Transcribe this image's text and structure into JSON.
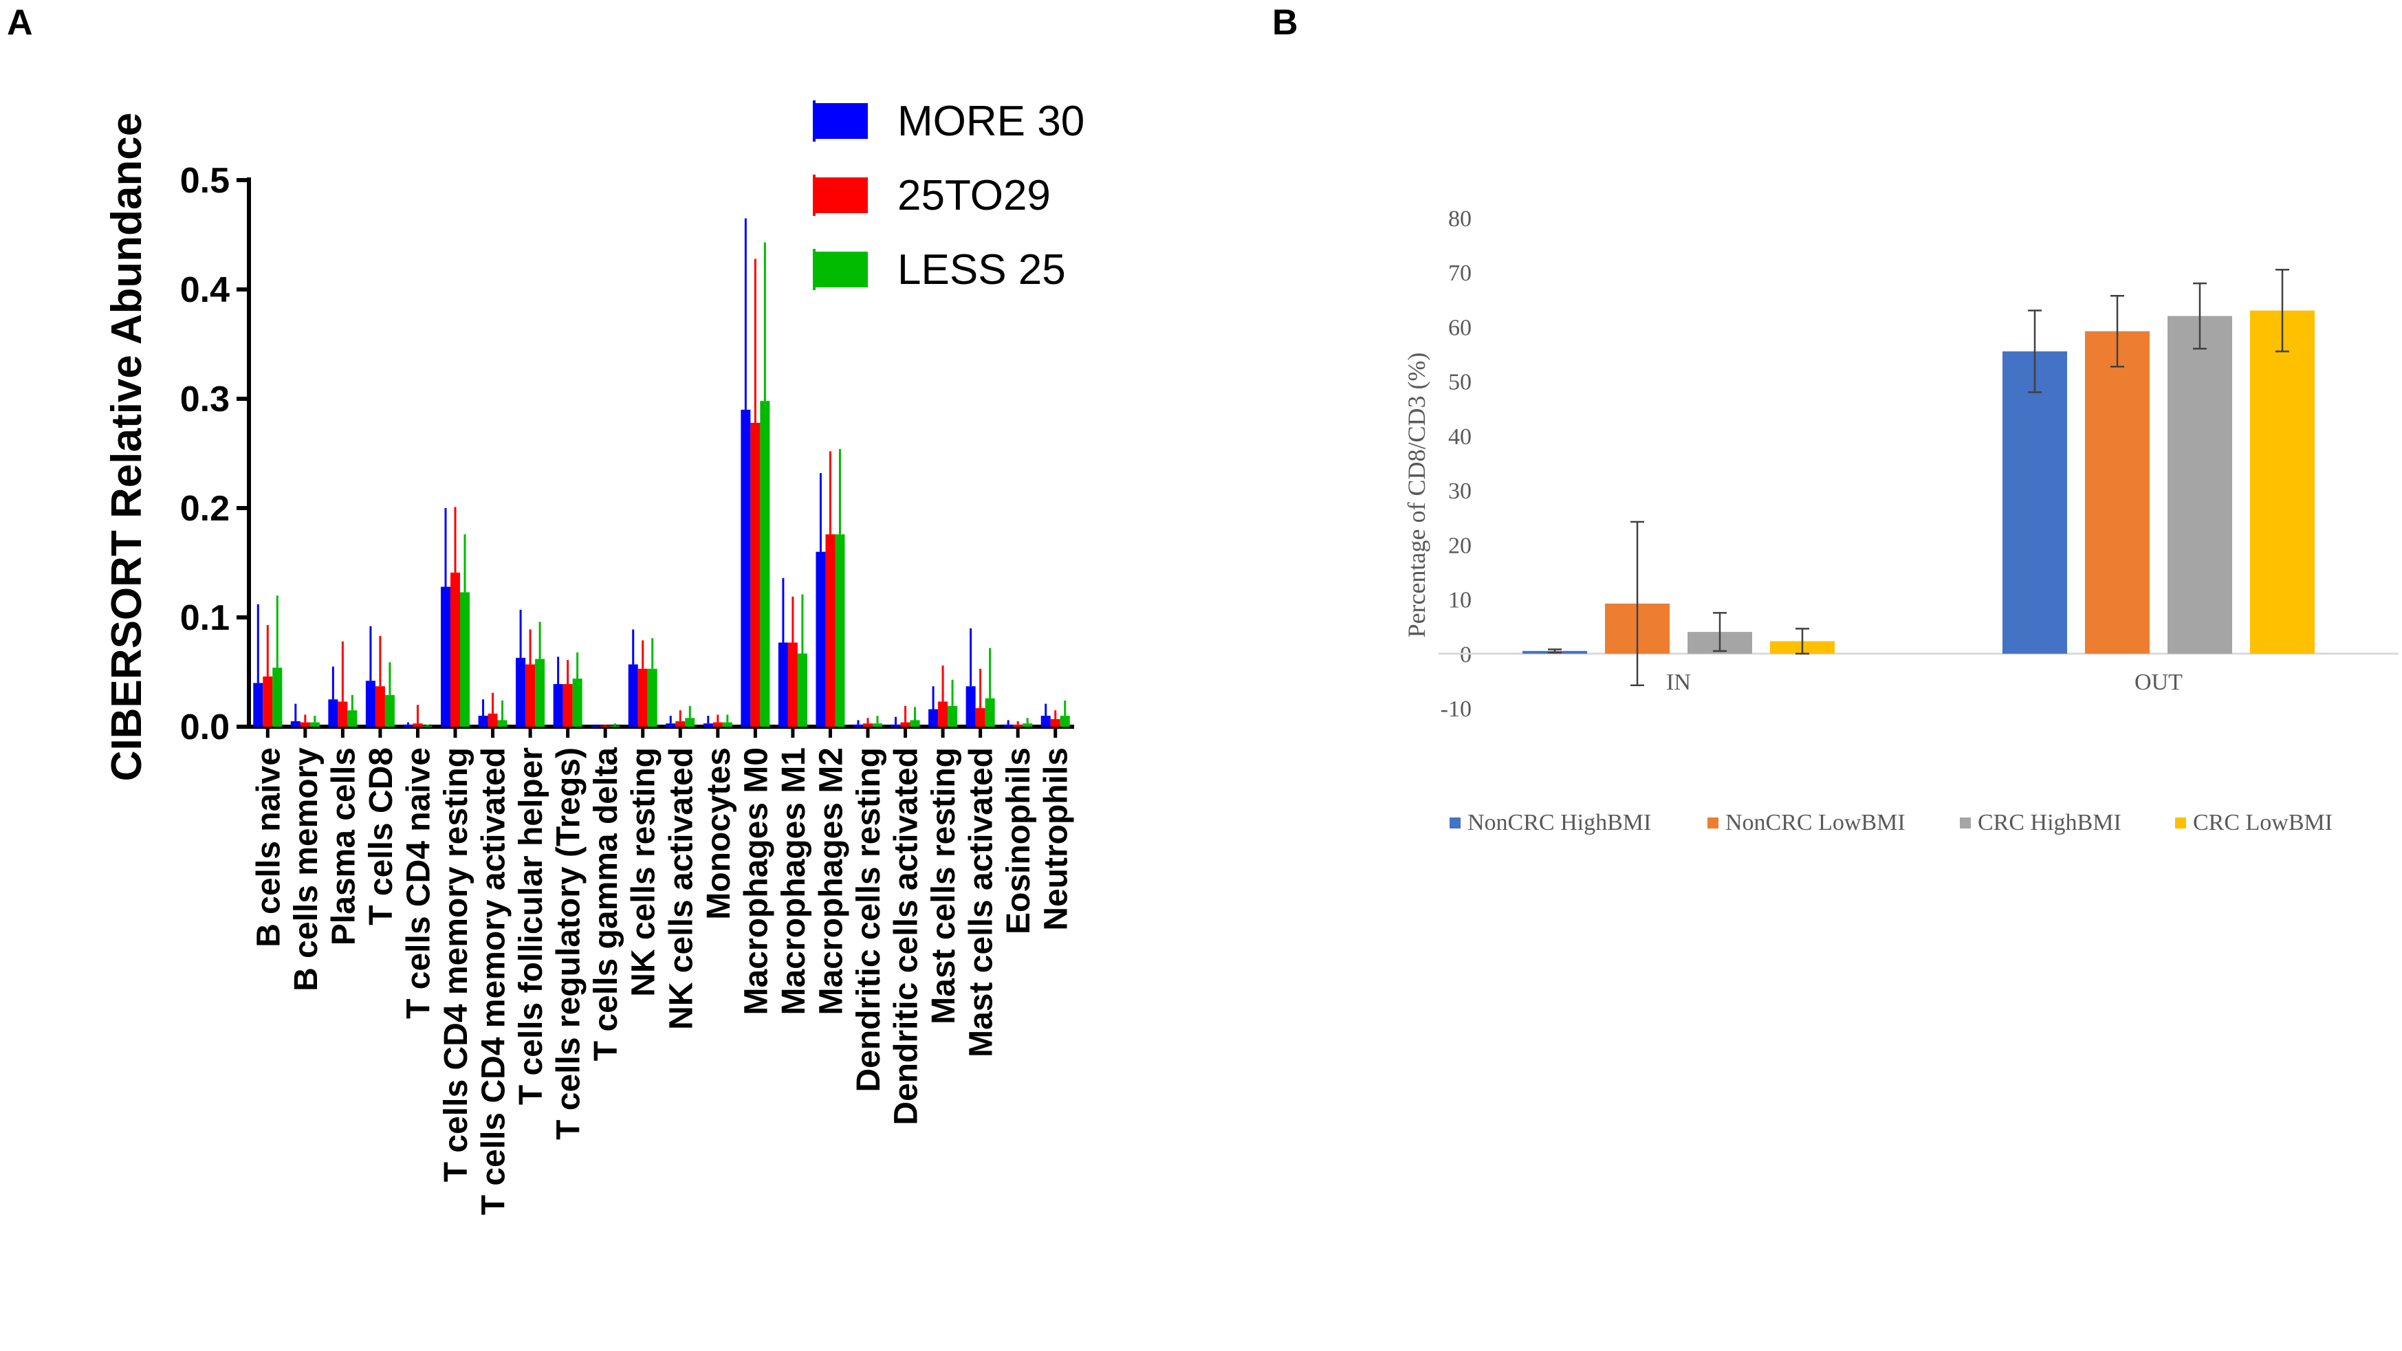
{
  "chart_data": [
    {
      "panel": "A",
      "type": "bar",
      "ylabel": "CIBERSORT Relative Abundance",
      "xlabel": "",
      "ylim": [
        0,
        0.5
      ],
      "yticks": [
        "0.0",
        "0.1",
        "0.2",
        "0.3",
        "0.4",
        "0.5"
      ],
      "legend_position": "top-right",
      "categories": [
        "B cells naive",
        "B cells memory",
        "Plasma cells",
        "T cells CD8",
        "T cells CD4 naive",
        "T cells CD4 memory resting",
        "T cells CD4 memory activated",
        "T cells follicular helper",
        "T cells regulatory (Tregs)",
        "T cells gamma delta",
        "NK cells resting",
        "NK cells activated",
        "Monocytes",
        "Macrophages M0",
        "Macrophages M1",
        "Macrophages M2",
        "Dendritic cells resting",
        "Dendritic cells activated",
        "Mast cells resting",
        "Mast cells activated",
        "Eosinophils",
        "Neutrophils"
      ],
      "series": [
        {
          "name": "MORE 30",
          "color": "#0000ff",
          "values": [
            0.04,
            0.005,
            0.025,
            0.042,
            0.002,
            0.128,
            0.01,
            0.063,
            0.039,
            0.001,
            0.057,
            0.003,
            0.003,
            0.29,
            0.077,
            0.16,
            0.002,
            0.002,
            0.016,
            0.037,
            0.002,
            0.01
          ],
          "errors": [
            0.072,
            0.016,
            0.03,
            0.05,
            0.002,
            0.072,
            0.015,
            0.044,
            0.025,
            0.001,
            0.032,
            0.007,
            0.007,
            0.175,
            0.059,
            0.072,
            0.004,
            0.007,
            0.021,
            0.053,
            0.004,
            0.011
          ]
        },
        {
          "name": "25TO29",
          "color": "#ff0000",
          "values": [
            0.046,
            0.004,
            0.023,
            0.037,
            0.003,
            0.141,
            0.012,
            0.057,
            0.039,
            0.001,
            0.053,
            0.005,
            0.004,
            0.278,
            0.077,
            0.176,
            0.003,
            0.004,
            0.023,
            0.017,
            0.002,
            0.007
          ],
          "errors": [
            0.047,
            0.007,
            0.055,
            0.046,
            0.017,
            0.06,
            0.019,
            0.032,
            0.022,
            0.001,
            0.026,
            0.01,
            0.007,
            0.15,
            0.042,
            0.076,
            0.005,
            0.015,
            0.033,
            0.036,
            0.003,
            0.008
          ]
        },
        {
          "name": "LESS 25",
          "color": "#00bb00",
          "values": [
            0.054,
            0.004,
            0.015,
            0.029,
            0.001,
            0.123,
            0.006,
            0.062,
            0.044,
            0.001,
            0.053,
            0.008,
            0.004,
            0.298,
            0.067,
            0.176,
            0.003,
            0.006,
            0.019,
            0.026,
            0.003,
            0.01
          ],
          "errors": [
            0.066,
            0.006,
            0.014,
            0.03,
            0.001,
            0.053,
            0.018,
            0.034,
            0.024,
            0.002,
            0.028,
            0.011,
            0.007,
            0.145,
            0.054,
            0.078,
            0.007,
            0.012,
            0.024,
            0.046,
            0.005,
            0.014
          ]
        }
      ]
    },
    {
      "panel": "B",
      "type": "bar",
      "ylabel": "Percentage of CD8/CD3 (%)",
      "xlabel": "",
      "ylim": [
        -10,
        80
      ],
      "yticks": [
        "-10",
        "0",
        "10",
        "20",
        "30",
        "40",
        "50",
        "60",
        "70",
        "80"
      ],
      "legend_position": "bottom",
      "categories": [
        "IN",
        "OUT"
      ],
      "series": [
        {
          "name": "NonCRC HighBMI",
          "color": "#4472c4",
          "values": [
            0.5,
            55.5
          ],
          "errors": [
            0.3,
            7.5
          ]
        },
        {
          "name": "NonCRC LowBMI",
          "color": "#ed7d31",
          "values": [
            9.2,
            59.2
          ],
          "errors": [
            15.0,
            6.5
          ]
        },
        {
          "name": "CRC HighBMI",
          "color": "#a5a5a5",
          "values": [
            4.0,
            62.0
          ],
          "errors": [
            3.5,
            6.0
          ]
        },
        {
          "name": "CRC LowBMI",
          "color": "#ffc000",
          "values": [
            2.3,
            63.0
          ],
          "errors": [
            2.3,
            7.5
          ]
        }
      ]
    }
  ],
  "labels": {
    "panel_a": "A",
    "panel_b": "B"
  }
}
